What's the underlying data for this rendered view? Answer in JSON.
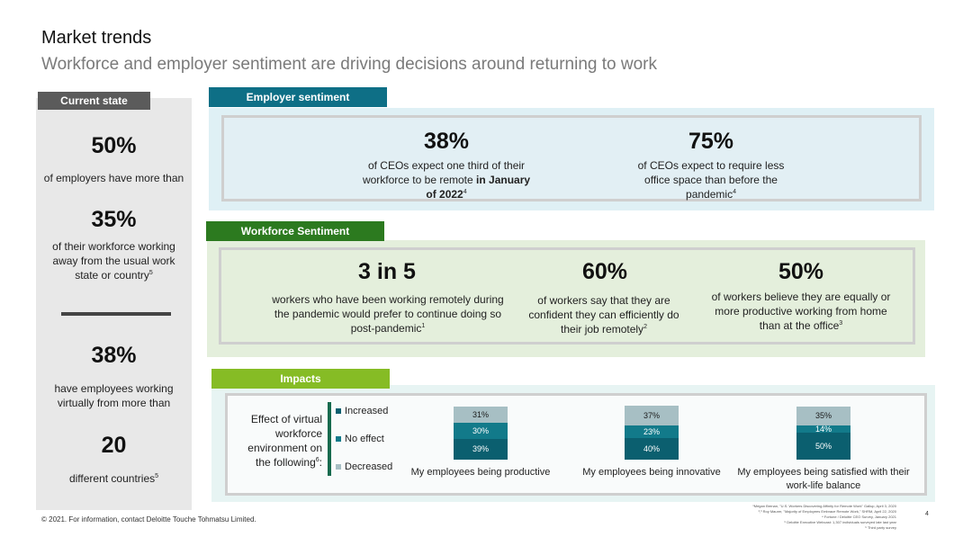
{
  "header": {
    "title": "Market trends",
    "subtitle": "Workforce and employer sentiment are driving decisions around returning to work"
  },
  "current_state": {
    "tab": "Current state",
    "stat1": "50%",
    "text1": "of employers have more than",
    "stat2": "35%",
    "text2": "of their workforce working away from the usual work state or country",
    "sup2": "5",
    "stat3": "38%",
    "text3": "have employees working virtually from more than",
    "stat4": "20",
    "text4": "different countries",
    "sup4": "5"
  },
  "employer": {
    "tab": "Employer sentiment",
    "stat1": "38%",
    "text1a": "of CEOs expect one third of their workforce to be remote",
    "text1b": "in January of 2022",
    "sup1": "4",
    "stat2": "75%",
    "text2": "of CEOs expect to require less office space than before the pandemic",
    "sup2": "4"
  },
  "workforce": {
    "tab": "Workforce Sentiment",
    "stat1": "3 in 5",
    "text1": "workers who have been working remotely during the pandemic would prefer to continue doing so post-pandemic",
    "sup1": "1",
    "stat2": "60%",
    "text2": "of workers say that they are confident they can efficiently do their job remotely",
    "sup2": "2",
    "stat3": "50%",
    "text3": "of workers believe they are equally or more productive working from home than at the office",
    "sup3": "3"
  },
  "impacts": {
    "tab": "Impacts",
    "label": "Effect of virtual workforce environment on the following",
    "label_sup": "6",
    "label_end": ":",
    "legend": [
      "Increased",
      "No effect",
      "Decreased"
    ]
  },
  "chart_data": {
    "type": "bar",
    "stacked": true,
    "categories": [
      "My employees being productive",
      "My employees being innovative",
      "My employees being satisfied with their work-life balance"
    ],
    "series": [
      {
        "name": "Increased",
        "values": [
          39,
          40,
          50
        ],
        "labels": [
          "39%",
          "40%",
          "50%"
        ],
        "color": "#0b5f6f"
      },
      {
        "name": "No effect",
        "values": [
          30,
          23,
          14
        ],
        "labels": [
          "30%",
          "23%",
          "14%"
        ],
        "color": "#127a8a"
      },
      {
        "name": "Decreased",
        "values": [
          31,
          37,
          35
        ],
        "labels": [
          "31%",
          "37%",
          "35%"
        ],
        "color": "#a7bfc4"
      }
    ]
  },
  "footer": {
    "copyright": "© 2021. For information, contact Deloitte Touche Tohmatsu Limited.",
    "page": "4",
    "notes": [
      "¹Megan Brenan, \"U.S. Workers Discovering Affinity for Remote Work\" Gallup, April 3, 2020",
      "²,³ Roy Maurer, \"Majority of Employees Embrace Remote Work,\" SHRM, April 22, 2020",
      "⁴ Fortune / Deloitte CEO Survey, January 2021",
      "⁵ Deloitte Executive Webcast: 1,307 individuals surveyed late last year",
      "⁶ Third party survey"
    ]
  }
}
